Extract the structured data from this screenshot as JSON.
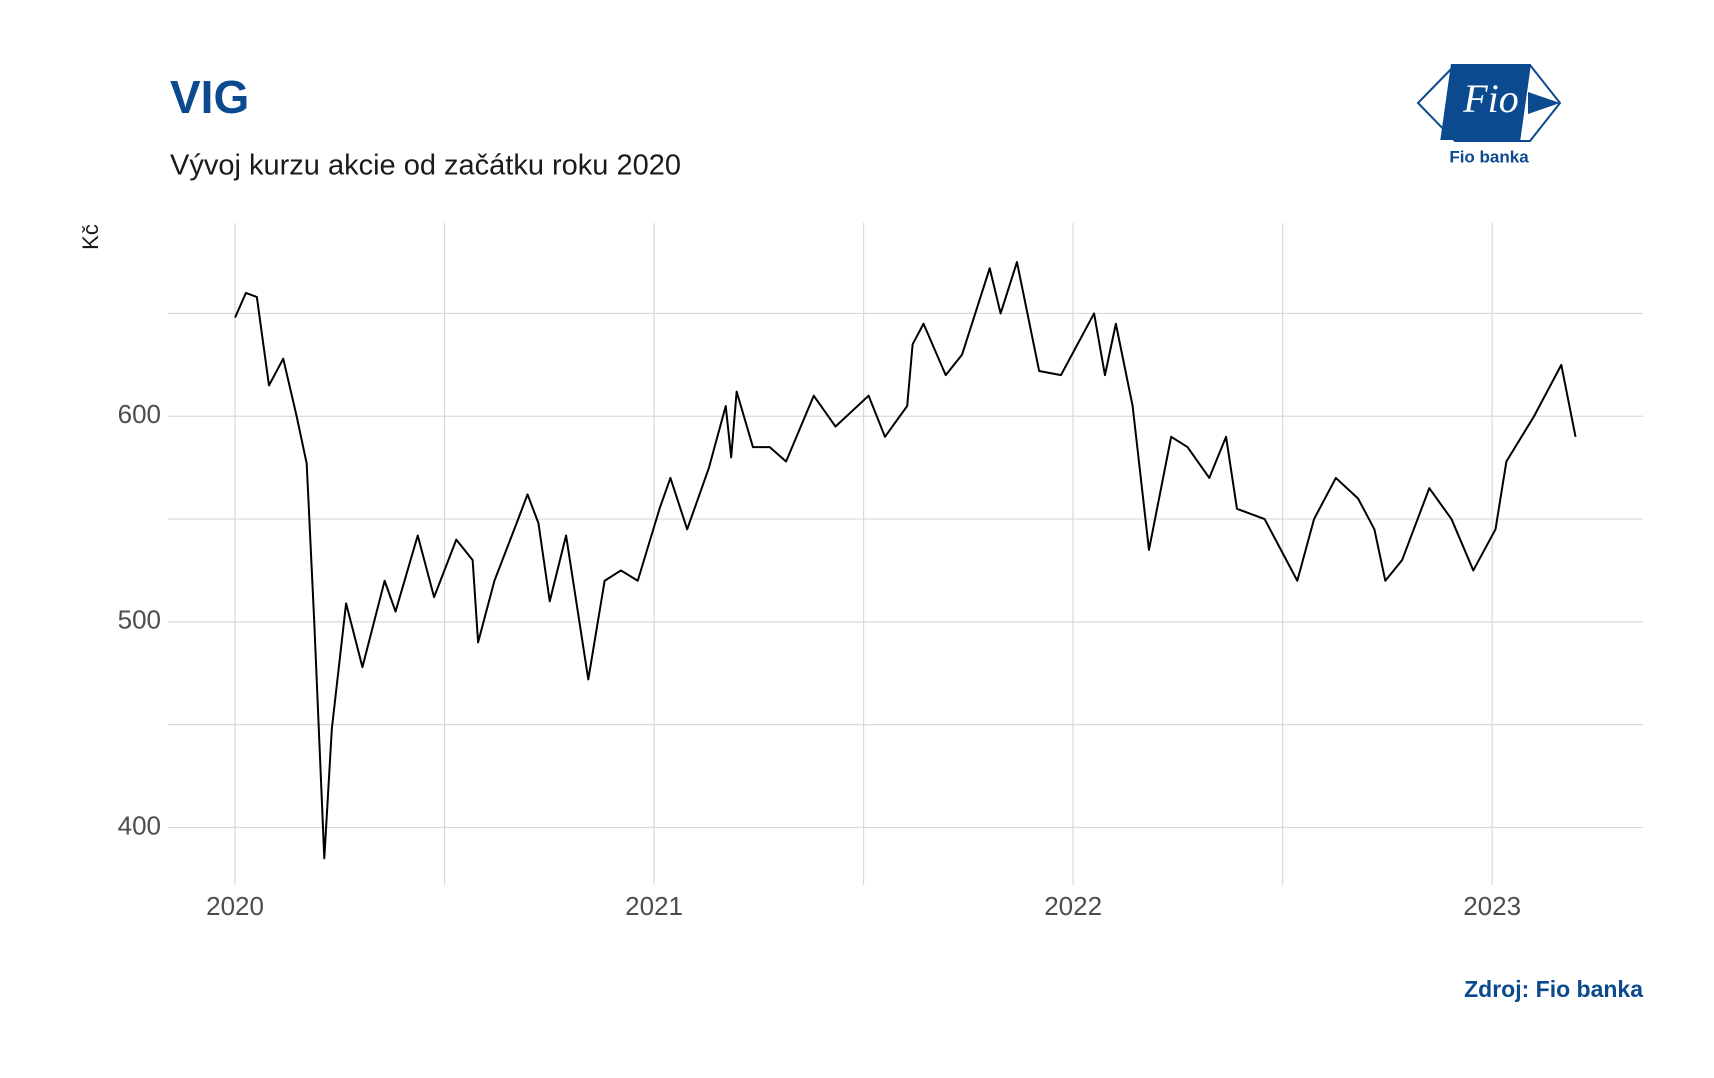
{
  "chart_data": {
    "type": "line",
    "title": "VIG",
    "subtitle": "Vývoj kurzu akcie od začátku roku 2020",
    "y_label": "Kč",
    "source": "Zdroj: Fio banka",
    "logo": {
      "text": "Fio",
      "caption": "Fio banka"
    },
    "x": [
      2020.0,
      2020.026,
      2020.052,
      2020.081,
      2020.115,
      2020.147,
      2020.171,
      2020.189,
      2020.213,
      2020.231,
      2020.265,
      2020.304,
      2020.357,
      2020.383,
      2020.436,
      2020.475,
      2020.528,
      2020.567,
      2020.58,
      2020.619,
      2020.672,
      2020.698,
      2020.724,
      2020.751,
      2020.79,
      2020.843,
      2020.882,
      2020.921,
      2020.961,
      2021.013,
      2021.039,
      2021.079,
      2021.131,
      2021.171,
      2021.184,
      2021.197,
      2021.236,
      2021.276,
      2021.315,
      2021.381,
      2021.433,
      2021.512,
      2021.551,
      2021.604,
      2021.617,
      2021.643,
      2021.696,
      2021.735,
      2021.801,
      2021.827,
      2021.866,
      2021.919,
      2021.971,
      2022.05,
      2022.076,
      2022.102,
      2022.142,
      2022.181,
      2022.234,
      2022.273,
      2022.325,
      2022.365,
      2022.391,
      2022.457,
      2022.483,
      2022.535,
      2022.575,
      2022.627,
      2022.68,
      2022.719,
      2022.745,
      2022.785,
      2022.85,
      2022.903,
      2022.955,
      2023.008,
      2023.034,
      2023.1,
      2023.165,
      2023.199
    ],
    "series": [
      {
        "name": "VIG",
        "color": "#000000",
        "values": [
          648,
          660,
          658,
          615,
          628,
          600,
          577,
          500,
          385,
          448,
          509,
          478,
          520,
          505,
          542,
          512,
          540,
          530,
          490,
          520,
          548,
          562,
          548,
          510,
          542,
          472,
          520,
          525,
          520,
          555,
          570,
          545,
          575,
          605,
          580,
          612,
          585,
          585,
          578,
          610,
          595,
          610,
          590,
          605,
          635,
          645,
          620,
          630,
          672,
          650,
          675,
          622,
          620,
          650,
          620,
          645,
          605,
          535,
          590,
          585,
          570,
          590,
          555,
          550,
          540,
          520,
          550,
          570,
          560,
          545,
          520,
          530,
          565,
          550,
          525,
          545,
          578,
          600,
          625,
          590
        ]
      }
    ],
    "xlim": [
      2019.84,
      2023.36
    ],
    "xticks": [
      2020,
      2021,
      2022,
      2023
    ],
    "xminorticks": [
      2020.5,
      2021.5,
      2022.5
    ],
    "ylim": [
      372,
      694
    ],
    "yticks": [
      400,
      500,
      600
    ],
    "yminorticks": [
      450,
      550,
      650
    ],
    "grid": true
  }
}
